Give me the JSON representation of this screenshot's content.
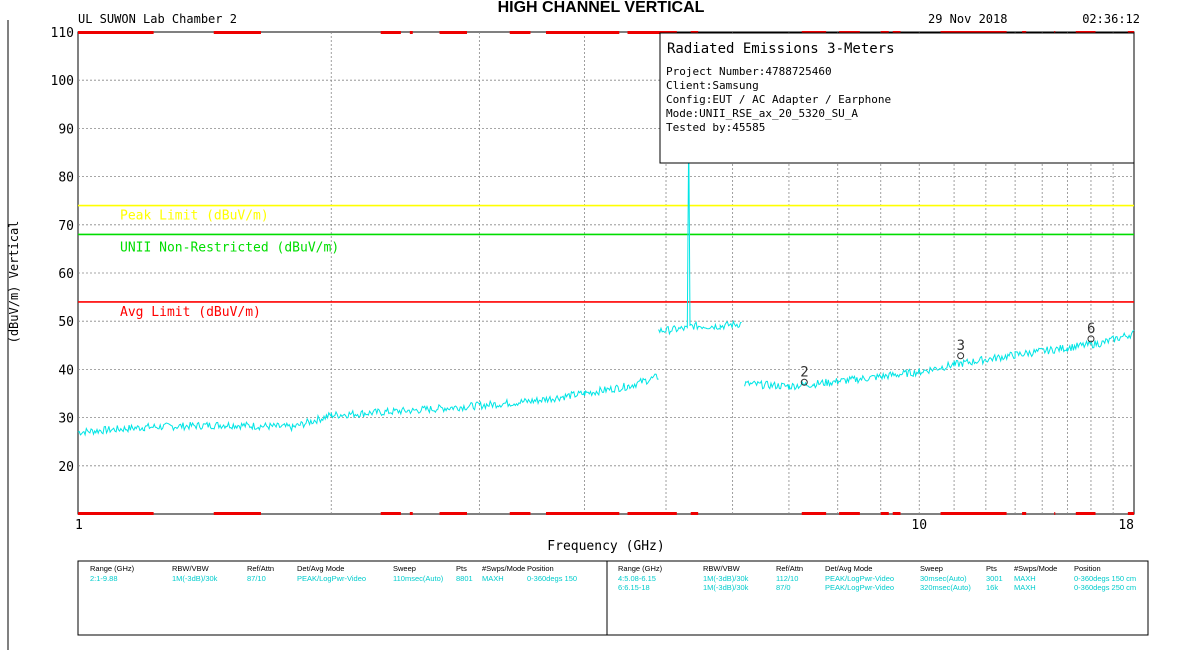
{
  "page_title": "HIGH CHANNEL VERTICAL",
  "header": {
    "lab": "UL SUWON Lab Chamber 2",
    "date": "29 Nov 2018",
    "time": "02:36:12"
  },
  "info_box": {
    "title": "Radiated Emissions 3-Meters",
    "lines": [
      "Project Number:4788725460",
      "Client:Samsung",
      "Config:EUT / AC Adapter / Earphone",
      "Mode:UNII_RSE_ax_20_5320_SU_A",
      "Tested by:45585"
    ]
  },
  "colors": {
    "trace": "#00e5e5",
    "peak_limit": "#ffff00",
    "unii_limit": "#00dd00",
    "avg_limit": "#ff0000",
    "restricted_band": "#ee0000",
    "grid": "#888888"
  },
  "chart_data": {
    "type": "line",
    "xscale": "log",
    "xlim": [
      1,
      18
    ],
    "ylim": [
      10,
      110
    ],
    "xlabel": "Frequency (GHz)",
    "ylabel": "(dBuV/m) Vertical",
    "x_tick_labels": [
      {
        "x": 1,
        "label": "1"
      },
      {
        "x": 10,
        "label": "10"
      },
      {
        "x": 18,
        "label": "18"
      }
    ],
    "y_ticks": [
      20,
      30,
      40,
      50,
      60,
      70,
      80,
      90,
      100,
      110
    ],
    "grid": true,
    "limits": [
      {
        "name": "Peak Limit (dBuV/m)",
        "value": 74,
        "color": "#ffff00"
      },
      {
        "name": "UNII Non-Restricted (dBuV/m)",
        "value": 68,
        "color": "#00dd00"
      },
      {
        "name": "Avg Limit (dBuV/m)",
        "value": 54,
        "color": "#ff0000"
      }
    ],
    "restricted_bands_ghz": [
      [
        1.0,
        1.23
      ],
      [
        1.45,
        1.65
      ],
      [
        2.29,
        2.42
      ],
      [
        2.48,
        2.5
      ],
      [
        2.69,
        2.9
      ],
      [
        3.26,
        3.45
      ],
      [
        3.6,
        4.4
      ],
      [
        4.5,
        5.15
      ],
      [
        5.35,
        5.46
      ],
      [
        7.25,
        7.75
      ],
      [
        8.03,
        8.5
      ],
      [
        9.0,
        9.2
      ],
      [
        9.3,
        9.5
      ],
      [
        10.6,
        12.7
      ],
      [
        13.25,
        13.4
      ],
      [
        14.47,
        14.5
      ],
      [
        15.35,
        16.2
      ],
      [
        17.7,
        18.0
      ]
    ],
    "trace_segments": [
      {
        "range": [
          1.0,
          4.9
        ],
        "points": [
          [
            1.0,
            27
          ],
          [
            1.2,
            28
          ],
          [
            1.5,
            28.5
          ],
          [
            1.8,
            28
          ],
          [
            2.0,
            30.5
          ],
          [
            2.5,
            31.5
          ],
          [
            3.0,
            32.5
          ],
          [
            3.5,
            33.5
          ],
          [
            4.0,
            35
          ],
          [
            4.5,
            36.5
          ],
          [
            4.9,
            38.5
          ]
        ]
      },
      {
        "range": [
          4.9,
          6.15
        ],
        "points": [
          [
            4.9,
            48
          ],
          [
            5.3,
            48.5
          ],
          [
            5.32,
            89
          ],
          [
            5.34,
            49
          ],
          [
            5.8,
            49
          ],
          [
            6.15,
            49.5
          ]
        ]
      },
      {
        "range": [
          6.2,
          18.0
        ],
        "points": [
          [
            6.2,
            37
          ],
          [
            7.0,
            36.5
          ],
          [
            7.5,
            37
          ],
          [
            8.0,
            37.5
          ],
          [
            9.0,
            38.5
          ],
          [
            10.0,
            39.5
          ],
          [
            11.0,
            41
          ],
          [
            13.0,
            43
          ],
          [
            15.0,
            44.5
          ],
          [
            16.5,
            45.5
          ],
          [
            18.0,
            47.5
          ]
        ]
      }
    ],
    "markers": [
      {
        "label": "2",
        "x": 7.3,
        "y": 36.5
      },
      {
        "label": "3",
        "x": 11.2,
        "y": 42
      },
      {
        "label": "6",
        "x": 16.0,
        "y": 45.5
      }
    ]
  },
  "settings_tables": [
    {
      "headers": [
        "Range (GHz)",
        "RBW/VBW",
        "Ref/Attn",
        "Det/Avg Mode",
        "Sweep",
        "Pts",
        "#Swps/Mode",
        "Position"
      ],
      "rows": [
        [
          "2:1-9.88",
          "1M(-3dB)/30k",
          "87/10",
          "PEAK/LogPwr-Video",
          "110msec(Auto)",
          "8801",
          "MAXH",
          "0-360degs 150"
        ]
      ]
    },
    {
      "headers": [
        "Range (GHz)",
        "RBW/VBW",
        "Ref/Attn",
        "Det/Avg Mode",
        "Sweep",
        "Pts",
        "#Swps/Mode",
        "Position"
      ],
      "rows": [
        [
          "4:5.08-6.15",
          "1M(-3dB)/30k",
          "112/10",
          "PEAK/LogPwr-Video",
          "30msec(Auto)",
          "3001",
          "MAXH",
          "0-360degs 150 cm"
        ],
        [
          "6:6.15-18",
          "1M(-3dB)/30k",
          "87/0",
          "PEAK/LogPwr-Video",
          "320msec(Auto)",
          "16k",
          "MAXH",
          "0-360degs 250 cm"
        ]
      ]
    }
  ]
}
